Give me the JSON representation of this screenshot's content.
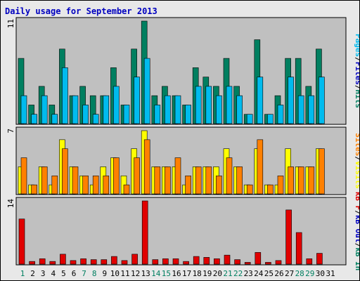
{
  "title": "Daily usage for September 2013",
  "colors": {
    "hits": "#007f60",
    "files": "#00bbee",
    "pages": "#00c8f0",
    "visits": "#ffff00",
    "sites": "#ff8000",
    "kb_in": "#007f60",
    "kb_out": "#0000c0",
    "kb_f": "#e00000",
    "weekend_label": "#007f60",
    "weekday_label": "#000000",
    "panel_bg": "#c0c0c0"
  },
  "chart_data": [
    {
      "type": "bar",
      "title": "Hits / Files / Pages",
      "ylabel_parts": [
        "Pages",
        "Files",
        "Hits"
      ],
      "ymax_label": "11",
      "ylim": [
        0,
        11
      ],
      "categories": [
        "1",
        "2",
        "3",
        "4",
        "5",
        "6",
        "7",
        "8",
        "9",
        "10",
        "11",
        "12",
        "13",
        "14",
        "15",
        "16",
        "17",
        "18",
        "19",
        "20",
        "21",
        "22",
        "23",
        "24",
        "25",
        "26",
        "27",
        "28",
        "29",
        "30",
        "31"
      ],
      "weekend_days": [
        1,
        7,
        8,
        14,
        15,
        21,
        22,
        28,
        29
      ],
      "series": [
        {
          "name": "Hits",
          "values": [
            7,
            2,
            4,
            2,
            8,
            3,
            4,
            3,
            3,
            6,
            2,
            8,
            11,
            3,
            4,
            3,
            2,
            6,
            5,
            4,
            7,
            4,
            1,
            9,
            1,
            3,
            7,
            7,
            4,
            8,
            0
          ]
        },
        {
          "name": "Files",
          "values": [
            3,
            1,
            3,
            1,
            6,
            3,
            2,
            1,
            3,
            4,
            2,
            5,
            7,
            2,
            3,
            3,
            2,
            4,
            4,
            3,
            4,
            3,
            1,
            5,
            1,
            2,
            5,
            3,
            3,
            5,
            0
          ]
        },
        {
          "name": "Pages",
          "values": [
            3,
            1,
            3,
            1,
            6,
            3,
            2,
            1,
            3,
            4,
            2,
            5,
            7,
            2,
            3,
            3,
            2,
            4,
            4,
            3,
            4,
            3,
            1,
            5,
            1,
            2,
            5,
            3,
            3,
            5,
            0
          ]
        }
      ]
    },
    {
      "type": "bar",
      "title": "Visits / Sites",
      "ylabel_parts": [
        "Sites",
        "Visits"
      ],
      "ymax_label": "7",
      "ylim": [
        0,
        7
      ],
      "series": [
        {
          "name": "Visits",
          "values": [
            3,
            1,
            3,
            1,
            6,
            3,
            2,
            1,
            3,
            4,
            2,
            5,
            7,
            3,
            3,
            3,
            1,
            3,
            3,
            3,
            5,
            3,
            1,
            5,
            1,
            1,
            5,
            3,
            3,
            5,
            0
          ]
        },
        {
          "name": "Sites",
          "values": [
            4,
            1,
            3,
            2,
            5,
            3,
            2,
            2,
            2,
            4,
            1,
            4,
            6,
            3,
            3,
            4,
            2,
            3,
            3,
            2,
            4,
            3,
            1,
            6,
            1,
            2,
            3,
            3,
            3,
            5,
            0
          ]
        }
      ]
    },
    {
      "type": "bar",
      "title": "KBytes F / Out / In",
      "ylabel_parts": [
        "kB F",
        "kB Out",
        "kB In"
      ],
      "ymax_label": "14",
      "ylim": [
        0,
        14
      ],
      "series": [
        {
          "name": "kB F",
          "values": [
            10,
            0.6,
            1.2,
            0.6,
            2.2,
            0.8,
            1.2,
            1,
            1,
            1.7,
            0.8,
            2.2,
            14,
            1,
            1.2,
            1.2,
            0.6,
            1.7,
            1.5,
            1.2,
            2,
            1,
            0.4,
            2.6,
            0.4,
            0.8,
            12,
            7,
            1.2,
            2.4,
            0
          ]
        }
      ]
    }
  ]
}
